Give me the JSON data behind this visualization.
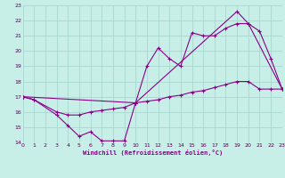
{
  "xlabel": "Windchill (Refroidissement éolien,°C)",
  "bg_color": "#c8eee8",
  "grid_color": "#a8d8d0",
  "line_color": "#880088",
  "xmin": 0,
  "xmax": 23,
  "ymin": 14,
  "ymax": 23,
  "line1_x": [
    0,
    1,
    3,
    4,
    5,
    6,
    7,
    8,
    9,
    10,
    11,
    12,
    13,
    14,
    15,
    16,
    17,
    18,
    19,
    20,
    21,
    22,
    23
  ],
  "line1_y": [
    17.0,
    16.8,
    15.8,
    15.1,
    14.4,
    14.7,
    14.1,
    14.1,
    14.1,
    16.6,
    19.0,
    20.2,
    19.5,
    19.0,
    21.2,
    21.0,
    21.0,
    21.5,
    21.8,
    21.8,
    21.3,
    19.5,
    17.5
  ],
  "line2_x": [
    0,
    1,
    3,
    4,
    5,
    6,
    7,
    8,
    9,
    10,
    11,
    12,
    13,
    14,
    15,
    16,
    17,
    18,
    19,
    20,
    21,
    22,
    23
  ],
  "line2_y": [
    17.0,
    16.8,
    16.0,
    15.8,
    15.8,
    16.0,
    16.1,
    16.2,
    16.3,
    16.6,
    16.7,
    16.8,
    17.0,
    17.1,
    17.3,
    17.4,
    17.6,
    17.8,
    18.0,
    18.0,
    17.5,
    17.5,
    17.5
  ],
  "line3_x": [
    0,
    10,
    19,
    20,
    23
  ],
  "line3_y": [
    17.0,
    16.6,
    22.6,
    21.8,
    17.5
  ]
}
